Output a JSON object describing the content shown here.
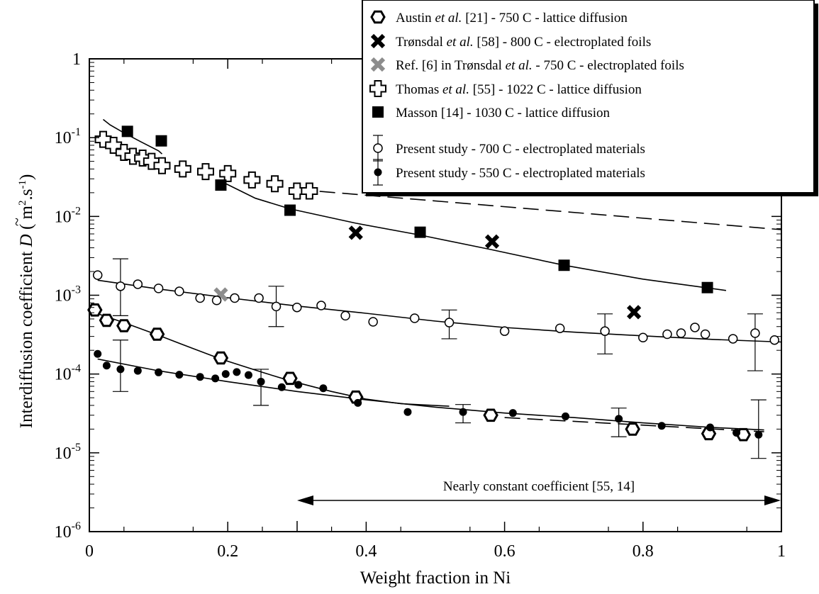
{
  "chart_data": {
    "type": "scatter",
    "title": "",
    "xlabel": "Weight fraction in Ni",
    "ylabel": {
      "prefix": "Interdiffusion coefficient",
      "symbol": "D",
      "tilde": "~",
      "unit_open": "( m",
      "unit_exp1": "2",
      "unit_mid": ".s",
      "unit_exp2": "-1",
      "unit_close": ")"
    },
    "xlim": [
      0,
      1
    ],
    "ylim": [
      1e-06,
      1
    ],
    "y_scale": "log",
    "grid": false,
    "legend_position": "top-right",
    "x_ticks": [
      {
        "value": 0,
        "label": "0"
      },
      {
        "value": 0.2,
        "label": "0.2"
      },
      {
        "value": 0.4,
        "label": "0.4"
      },
      {
        "value": 0.6,
        "label": "0.6"
      },
      {
        "value": 0.8,
        "label": "0.8"
      },
      {
        "value": 1,
        "label": "1"
      }
    ],
    "y_ticks": [
      {
        "value": 1,
        "base": "1",
        "exp": ""
      },
      {
        "value": 0.1,
        "base": "10",
        "exp": "-1"
      },
      {
        "value": 0.01,
        "base": "10",
        "exp": "-2"
      },
      {
        "value": 0.001,
        "base": "10",
        "exp": "-3"
      },
      {
        "value": 0.0001,
        "base": "10",
        "exp": "-4"
      },
      {
        "value": 1e-05,
        "base": "10",
        "exp": "-5"
      },
      {
        "value": 1e-06,
        "base": "10",
        "exp": "-6"
      }
    ],
    "series": [
      {
        "name_parts": [
          {
            "t": "Austin ",
            "i": false
          },
          {
            "t": "et al.",
            "i": true
          },
          {
            "t": " [21] - 750 C - lattice diffusion",
            "i": false
          }
        ],
        "marker": "hexagon",
        "color": "#000000",
        "x": [
          0.008,
          0.025,
          0.05,
          0.098,
          0.19,
          0.29,
          0.385,
          0.58,
          0.785,
          0.895,
          0.945
        ],
        "y": [
          0.00065,
          0.00048,
          0.00041,
          0.00032,
          0.00016,
          8.8e-05,
          5.1e-05,
          3e-05,
          2e-05,
          1.75e-05,
          1.7e-05
        ]
      },
      {
        "name_parts": [
          {
            "t": "Trønsdal ",
            "i": false
          },
          {
            "t": "et al.",
            "i": true
          },
          {
            "t": " [58] - 800 C - electroplated foils",
            "i": false
          }
        ],
        "marker": "x",
        "color": "#000000",
        "x": [
          0.385,
          0.582,
          0.787
        ],
        "y": [
          0.0062,
          0.0048,
          0.00061
        ]
      },
      {
        "name_parts": [
          {
            "t": "Ref. [6] in Trønsdal ",
            "i": false
          },
          {
            "t": "et al.",
            "i": true
          },
          {
            "t": " - 750 C - electroplated foils",
            "i": false
          }
        ],
        "marker": "x",
        "color": "#8c8c8c",
        "x": [
          0.19
        ],
        "y": [
          0.00102
        ]
      },
      {
        "name_parts": [
          {
            "t": "Thomas ",
            "i": false
          },
          {
            "t": "et al.",
            "i": true
          },
          {
            "t": " [55] - 1022 C - lattice diffusion",
            "i": false
          }
        ],
        "marker": "plus",
        "color": "#000000",
        "x": [
          0.02,
          0.035,
          0.05,
          0.063,
          0.077,
          0.09,
          0.105,
          0.135,
          0.168,
          0.2,
          0.235,
          0.268,
          0.3,
          0.318
        ],
        "y": [
          0.095,
          0.08,
          0.065,
          0.058,
          0.055,
          0.05,
          0.044,
          0.04,
          0.037,
          0.035,
          0.029,
          0.026,
          0.021,
          0.021
        ]
      },
      {
        "name_parts": [
          {
            "t": "Masson [14] - 1030 C - lattice diffusion",
            "i": false
          }
        ],
        "marker": "square",
        "color": "#000000",
        "x": [
          0.055,
          0.104,
          0.19,
          0.29,
          0.478,
          0.686,
          0.893
        ],
        "y": [
          0.12,
          0.091,
          0.025,
          0.012,
          0.0063,
          0.0024,
          0.00125
        ]
      },
      {
        "name_parts": [
          {
            "t": "Present study - 700 C - electroplated materials",
            "i": false
          }
        ],
        "marker": "open-circle",
        "color": "#000000",
        "x": [
          0.012,
          0.045,
          0.07,
          0.1,
          0.13,
          0.16,
          0.184,
          0.21,
          0.245,
          0.27,
          0.3,
          0.335,
          0.37,
          0.41,
          0.47,
          0.52,
          0.6,
          0.68,
          0.745,
          0.8,
          0.835,
          0.855,
          0.875,
          0.89,
          0.93,
          0.962,
          0.99
        ],
        "y": [
          0.0018,
          0.0013,
          0.00138,
          0.00122,
          0.00112,
          0.00092,
          0.00086,
          0.00092,
          0.00092,
          0.00072,
          0.0007,
          0.00074,
          0.00055,
          0.00046,
          0.00051,
          0.00045,
          0.00035,
          0.00038,
          0.00035,
          0.00029,
          0.00032,
          0.00033,
          0.00039,
          0.00032,
          0.00028,
          0.00033,
          0.00027
        ],
        "error_bars": [
          {
            "x": 0.045,
            "y": 0.0013,
            "low": 0.00055,
            "high": 0.0029
          },
          {
            "x": 0.27,
            "y": 0.00072,
            "low": 0.0004,
            "high": 0.0013
          },
          {
            "x": 0.52,
            "y": 0.00045,
            "low": 0.00028,
            "high": 0.00065
          },
          {
            "x": 0.745,
            "y": 0.00035,
            "low": 0.00018,
            "high": 0.00058
          },
          {
            "x": 0.962,
            "y": 0.00033,
            "low": 0.00011,
            "high": 0.00058
          }
        ]
      },
      {
        "name_parts": [
          {
            "t": "Present study - 550 C - electroplated materials",
            "i": false
          }
        ],
        "marker": "filled-circle",
        "color": "#000000",
        "x": [
          0.012,
          0.025,
          0.045,
          0.07,
          0.1,
          0.13,
          0.16,
          0.182,
          0.197,
          0.213,
          0.23,
          0.248,
          0.278,
          0.302,
          0.338,
          0.388,
          0.46,
          0.54,
          0.612,
          0.688,
          0.765,
          0.827,
          0.897,
          0.935,
          0.967
        ],
        "y": [
          0.00018,
          0.000128,
          0.000115,
          0.00011,
          0.000105,
          9.8e-05,
          9.2e-05,
          8.8e-05,
          0.0001,
          0.000106,
          9.7e-05,
          8e-05,
          6.8e-05,
          7.3e-05,
          6.6e-05,
          4.3e-05,
          3.3e-05,
          3.3e-05,
          3.2e-05,
          2.9e-05,
          2.7e-05,
          2.2e-05,
          2.1e-05,
          1.8e-05,
          1.7e-05
        ],
        "error_bars": [
          {
            "x": 0.045,
            "y": 0.000115,
            "low": 6e-05,
            "high": 0.00027
          },
          {
            "x": 0.248,
            "y": 8e-05,
            "low": 4e-05,
            "high": 0.000115
          },
          {
            "x": 0.54,
            "y": 3.3e-05,
            "low": 2.4e-05,
            "high": 4.1e-05
          },
          {
            "x": 0.765,
            "y": 2.7e-05,
            "low": 1.6e-05,
            "high": 3.7e-05
          },
          {
            "x": 0.967,
            "y": 1.7e-05,
            "low": 8.5e-06,
            "high": 4.7e-05
          }
        ]
      }
    ],
    "fit_lines": [
      {
        "style": "solid",
        "x": [
          0.02,
          0.03,
          0.05,
          0.075,
          0.1,
          0.105
        ],
        "y": [
          0.17,
          0.145,
          0.115,
          0.088,
          0.068,
          0.062
        ]
      },
      {
        "style": "solid",
        "x": [
          0.19,
          0.24,
          0.29,
          0.385,
          0.478,
          0.58,
          0.686,
          0.8,
          0.92
        ],
        "y": [
          0.028,
          0.017,
          0.0125,
          0.0082,
          0.0058,
          0.0038,
          0.0024,
          0.0016,
          0.00115
        ]
      },
      {
        "style": "dashed",
        "x": [
          0.3,
          1.0
        ],
        "y": [
          0.022,
          0.0068
        ]
      },
      {
        "style": "solid",
        "x": [
          0.012,
          0.1,
          0.2,
          0.3,
          0.4,
          0.5,
          0.6,
          0.7,
          0.8,
          0.9,
          1.0
        ],
        "y": [
          0.00155,
          0.0012,
          0.00093,
          0.00073,
          0.00059,
          0.00047,
          0.00039,
          0.00034,
          0.000305,
          0.000275,
          0.000255
        ]
      },
      {
        "style": "solid",
        "x": [
          0.008,
          0.05,
          0.1,
          0.15,
          0.19,
          0.25,
          0.29,
          0.35,
          0.4,
          0.45,
          0.52
        ],
        "y": [
          0.0006,
          0.00045,
          0.00031,
          0.00021,
          0.000155,
          0.000105,
          8.2e-05,
          6e-05,
          4.8e-05,
          4.2e-05,
          3.9e-05
        ]
      },
      {
        "style": "solid",
        "x": [
          0.012,
          0.1,
          0.2,
          0.3,
          0.4,
          0.5,
          0.6,
          0.7,
          0.8,
          0.9,
          0.975
        ],
        "y": [
          0.000155,
          0.00011,
          8e-05,
          6e-05,
          4.7e-05,
          3.8e-05,
          3.2e-05,
          2.8e-05,
          2.4e-05,
          2.1e-05,
          1.95e-05
        ]
      },
      {
        "style": "dashed",
        "x": [
          0.6,
          0.975
        ],
        "y": [
          2.8e-05,
          1.85e-05
        ]
      }
    ],
    "annotations": [
      {
        "text": "Nearly constant coefficient [55, 14]",
        "x_start": 0.3,
        "x_end": 1.0
      }
    ]
  }
}
